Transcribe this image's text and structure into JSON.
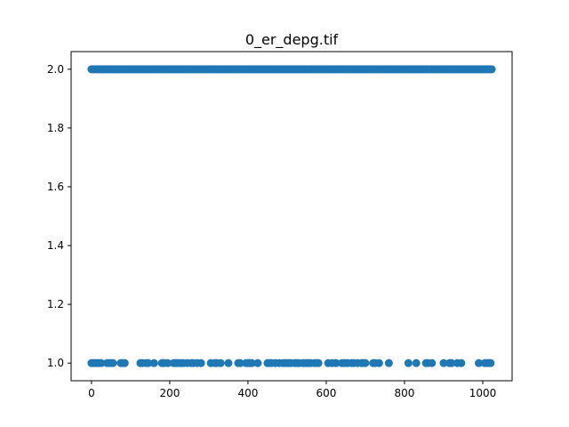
{
  "chart_data": {
    "type": "scatter",
    "title": "0_er_depg.tif",
    "xlabel": "",
    "ylabel": "",
    "xlim": [
      -52,
      1075
    ],
    "ylim": [
      0.94,
      2.06
    ],
    "xticks": [
      0,
      200,
      400,
      600,
      800,
      1000
    ],
    "yticks": [
      1.0,
      1.2,
      1.4,
      1.6,
      1.8,
      2.0
    ],
    "xtick_labels": [
      "0",
      "200",
      "400",
      "600",
      "800",
      "1000"
    ],
    "ytick_labels": [
      "1.0",
      "1.2",
      "1.4",
      "1.6",
      "1.8",
      "2.0"
    ],
    "marker_color": "#1f77b4",
    "grid": false,
    "series": [
      {
        "y": 2.0,
        "x_range": [
          0,
          1023
        ],
        "x_step": 3
      },
      {
        "y": 1.0,
        "x": [
          0,
          5,
          10,
          15,
          20,
          25,
          40,
          45,
          50,
          55,
          75,
          80,
          85,
          125,
          130,
          140,
          145,
          160,
          180,
          185,
          195,
          210,
          215,
          220,
          225,
          230,
          235,
          245,
          255,
          260,
          270,
          280,
          305,
          315,
          320,
          330,
          350,
          375,
          380,
          395,
          400,
          405,
          410,
          425,
          450,
          455,
          460,
          470,
          480,
          490,
          495,
          500,
          505,
          510,
          520,
          525,
          530,
          540,
          545,
          550,
          555,
          560,
          570,
          575,
          580,
          605,
          615,
          625,
          640,
          645,
          650,
          655,
          665,
          670,
          680,
          690,
          695,
          700,
          720,
          725,
          735,
          760,
          810,
          830,
          855,
          860,
          870,
          900,
          915,
          920,
          935,
          945,
          990,
          1005,
          1010,
          1015,
          1020
        ]
      }
    ]
  }
}
